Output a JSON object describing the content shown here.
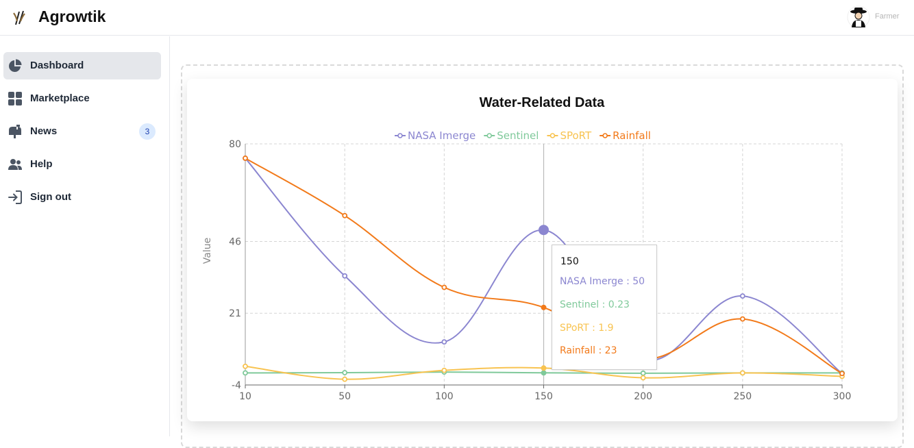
{
  "app": {
    "title": "Agrowtik",
    "logo_icon": "wheat-logo-icon"
  },
  "user": {
    "role": "Farmer",
    "avatar_icon": "farmer-avatar-icon"
  },
  "sidebar": {
    "items": [
      {
        "label": "Dashboard",
        "icon": "pie-chart-icon",
        "active": true
      },
      {
        "label": "Marketplace",
        "icon": "grid-icon",
        "active": false
      },
      {
        "label": "News",
        "icon": "mailbox-icon",
        "active": false,
        "badge": "3"
      },
      {
        "label": "Help",
        "icon": "users-icon",
        "active": false
      },
      {
        "label": "Sign out",
        "icon": "sign-out-icon",
        "active": false
      }
    ]
  },
  "colors": {
    "nasa": "#8b86d0",
    "sentinel": "#7fc99a",
    "sport": "#f8c350",
    "rainfall": "#f27a1a",
    "active_nav_bg": "#e5e7eb",
    "badge_bg": "#dbeafe"
  },
  "chart_data": {
    "type": "line",
    "title": "Water-Related Data",
    "ylabel": "Value",
    "xlabel": "",
    "categories": [
      "10",
      "50",
      "100",
      "150",
      "200",
      "250",
      "300"
    ],
    "y_ticks": [
      "80",
      "46",
      "21",
      "-4"
    ],
    "y_tick_values": [
      80,
      46,
      21,
      -4
    ],
    "grid": true,
    "legend_position": "top",
    "smooth": true,
    "series": [
      {
        "name": "NASA Imerge",
        "values": [
          75,
          34,
          11,
          50,
          5,
          27,
          0
        ]
      },
      {
        "name": "Sentinel",
        "values": [
          0.2,
          0.3,
          0.5,
          0.23,
          0.1,
          0.2,
          0.2
        ]
      },
      {
        "name": "SPoRT",
        "values": [
          2.5,
          -2,
          1.1,
          1.9,
          -1.5,
          0.2,
          -1
        ]
      },
      {
        "name": "Rainfall",
        "values": [
          75,
          55,
          30,
          23,
          5,
          19,
          0
        ]
      }
    ],
    "tooltip": {
      "category": "150",
      "rows": [
        "NASA Imerge : 50",
        "Sentinel : 0.23",
        "SPoRT : 1.9",
        "Rainfall : 23"
      ]
    }
  }
}
